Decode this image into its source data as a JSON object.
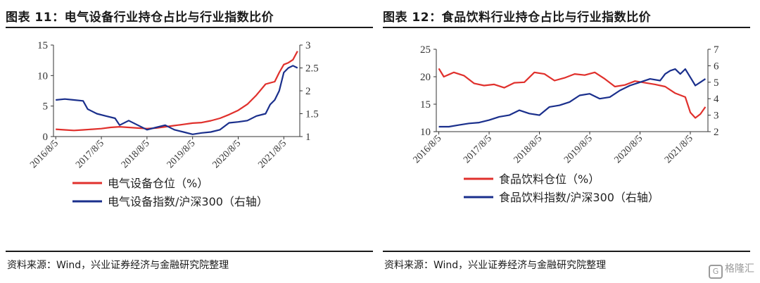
{
  "colors": {
    "red": "#e0302c",
    "blue": "#1a2f8c",
    "axis": "#333333"
  },
  "panels": [
    {
      "title": "图表 11：电气设备行业持仓占比与行业指数比价",
      "source": "资料来源：Wind，兴业证券经济与金融研究院整理",
      "legend": [
        "电气设备仓位（%）",
        "电气设备指数/沪深300（右轴）"
      ]
    },
    {
      "title": "图表 12：食品饮料行业持仓占比与行业指数比价",
      "source": "资料来源：Wind，兴业证券经济与金融研究院整理",
      "legend": [
        "食品饮料仓位（%）",
        "食品饮料指数/沪深300（右轴）"
      ]
    }
  ],
  "watermark": "格隆汇",
  "chart_data": [
    {
      "type": "line",
      "x_tick_labels": [
        "2016/8/5",
        "2017/8/5",
        "2018/8/5",
        "2019/8/5",
        "2020/8/5",
        "2021/8/5"
      ],
      "x_range": [
        2016.55,
        2021.95
      ],
      "ylim_left": [
        0,
        15
      ],
      "yticks_left": [
        0,
        5,
        10,
        15
      ],
      "ylim_right": [
        1,
        3
      ],
      "yticks_right": [
        1,
        1.5,
        2,
        2.5,
        3
      ],
      "grid": false,
      "legend_placement": "bottom",
      "series": [
        {
          "name": "电气设备仓位（%）",
          "axis": "left",
          "color": "#e0302c",
          "x": [
            2016.6,
            2016.8,
            2017.0,
            2017.2,
            2017.4,
            2017.6,
            2017.8,
            2018.0,
            2018.2,
            2018.4,
            2018.6,
            2018.8,
            2019.0,
            2019.2,
            2019.4,
            2019.6,
            2019.8,
            2020.0,
            2020.2,
            2020.4,
            2020.6,
            2020.8,
            2021.0,
            2021.2,
            2021.4,
            2021.5,
            2021.6,
            2021.7,
            2021.8,
            2021.9
          ],
          "y": [
            1.2,
            1.1,
            1.0,
            1.1,
            1.2,
            1.3,
            1.5,
            1.6,
            1.5,
            1.4,
            1.3,
            1.4,
            1.6,
            1.8,
            2.0,
            2.2,
            2.3,
            2.6,
            3.0,
            3.6,
            4.3,
            5.3,
            6.8,
            8.6,
            9.0,
            10.5,
            11.8,
            12.1,
            12.6,
            14.0
          ]
        },
        {
          "name": "电气设备指数/沪深300（右轴）",
          "axis": "right",
          "color": "#1a2f8c",
          "x": [
            2016.6,
            2016.8,
            2017.0,
            2017.2,
            2017.3,
            2017.5,
            2017.7,
            2017.9,
            2018.0,
            2018.2,
            2018.4,
            2018.6,
            2018.8,
            2019.0,
            2019.2,
            2019.4,
            2019.6,
            2019.8,
            2020.0,
            2020.2,
            2020.4,
            2020.6,
            2020.8,
            2021.0,
            2021.2,
            2021.3,
            2021.4,
            2021.5,
            2021.6,
            2021.7,
            2021.8,
            2021.9
          ],
          "y": [
            1.8,
            1.82,
            1.8,
            1.78,
            1.6,
            1.5,
            1.45,
            1.4,
            1.25,
            1.35,
            1.25,
            1.15,
            1.2,
            1.25,
            1.15,
            1.1,
            1.05,
            1.08,
            1.1,
            1.15,
            1.3,
            1.32,
            1.35,
            1.45,
            1.5,
            1.7,
            1.8,
            2.0,
            2.4,
            2.5,
            2.55,
            2.5
          ]
        }
      ]
    },
    {
      "type": "line",
      "x_tick_labels": [
        "2016/8/5",
        "2017/8/5",
        "2018/8/5",
        "2019/8/5",
        "2020/8/5",
        "2021/8/5"
      ],
      "x_range": [
        2016.55,
        2021.95
      ],
      "ylim_left": [
        10,
        25
      ],
      "yticks_left": [
        10,
        15,
        20,
        25
      ],
      "ylim_right": [
        2,
        7
      ],
      "yticks_right": [
        2,
        3,
        4,
        5,
        6,
        7
      ],
      "grid": false,
      "legend_placement": "bottom",
      "series": [
        {
          "name": "食品饮料仓位（%）",
          "axis": "left",
          "color": "#e0302c",
          "x": [
            2016.6,
            2016.7,
            2016.9,
            2017.1,
            2017.3,
            2017.5,
            2017.7,
            2017.9,
            2018.1,
            2018.3,
            2018.5,
            2018.7,
            2018.9,
            2019.1,
            2019.3,
            2019.5,
            2019.7,
            2019.9,
            2020.1,
            2020.3,
            2020.5,
            2020.7,
            2020.9,
            2021.1,
            2021.3,
            2021.5,
            2021.6,
            2021.7,
            2021.8,
            2021.9
          ],
          "y": [
            21.5,
            20.0,
            20.8,
            20.2,
            18.8,
            18.4,
            18.6,
            18.0,
            18.9,
            19.0,
            20.8,
            20.5,
            19.3,
            19.8,
            20.5,
            20.3,
            20.8,
            19.6,
            18.2,
            18.5,
            19.2,
            18.9,
            18.6,
            18.2,
            17.0,
            16.3,
            13.5,
            12.5,
            13.2,
            14.5
          ]
        },
        {
          "name": "食品饮料指数/沪深300（右轴）",
          "axis": "right",
          "color": "#1a2f8c",
          "x": [
            2016.6,
            2016.8,
            2017.0,
            2017.2,
            2017.4,
            2017.6,
            2017.8,
            2018.0,
            2018.2,
            2018.4,
            2018.6,
            2018.8,
            2019.0,
            2019.2,
            2019.4,
            2019.6,
            2019.8,
            2020.0,
            2020.2,
            2020.4,
            2020.6,
            2020.8,
            2021.0,
            2021.1,
            2021.2,
            2021.3,
            2021.4,
            2021.5,
            2021.6,
            2021.7,
            2021.8,
            2021.9
          ],
          "y": [
            2.3,
            2.3,
            2.4,
            2.5,
            2.55,
            2.7,
            2.9,
            3.0,
            3.3,
            3.1,
            3.0,
            3.5,
            3.6,
            3.8,
            4.2,
            4.3,
            4.0,
            4.1,
            4.5,
            4.8,
            5.0,
            5.2,
            5.1,
            5.5,
            5.7,
            5.8,
            5.5,
            5.8,
            5.3,
            4.8,
            5.0,
            5.2
          ]
        }
      ]
    }
  ]
}
